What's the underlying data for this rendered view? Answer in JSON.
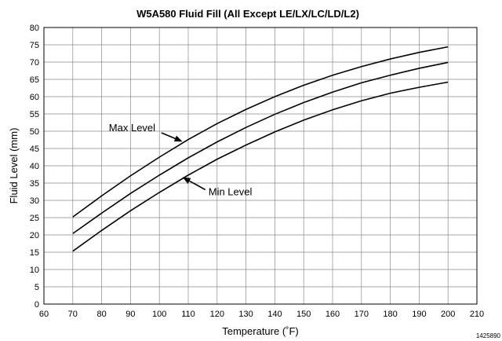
{
  "chart_data": {
    "type": "line",
    "title": "W5A580 Fluid Fill (All Except LE/LX/LC/LD/L2)",
    "xlabel": "Temperature (˚F)",
    "ylabel": "Fluid Level (mm)",
    "xlim": [
      60,
      210
    ],
    "ylim": [
      0,
      80
    ],
    "x_ticks": [
      60,
      70,
      80,
      90,
      100,
      110,
      120,
      130,
      140,
      150,
      160,
      170,
      180,
      190,
      200,
      210
    ],
    "y_ticks": [
      0,
      5,
      10,
      15,
      20,
      25,
      30,
      35,
      40,
      45,
      50,
      55,
      60,
      65,
      70,
      75,
      80
    ],
    "grid": true,
    "legend": "none",
    "series": [
      {
        "x": [
          70,
          80,
          90,
          100,
          110,
          120,
          130,
          140,
          150,
          160,
          170,
          180,
          190,
          200
        ],
        "values": [
          25.2,
          31.3,
          37.1,
          42.5,
          47.6,
          52.2,
          56.3,
          60.0,
          63.3,
          66.2,
          68.7,
          70.9,
          72.8,
          74.4
        ]
      },
      {
        "x": [
          70,
          80,
          90,
          100,
          110,
          120,
          130,
          140,
          150,
          160,
          170,
          180,
          190,
          200
        ],
        "values": [
          20.4,
          26.3,
          32.0,
          37.3,
          42.3,
          46.9,
          51.1,
          54.9,
          58.3,
          61.3,
          64.0,
          66.2,
          68.2,
          69.9
        ]
      },
      {
        "x": [
          70,
          80,
          90,
          100,
          110,
          120,
          130,
          140,
          150,
          160,
          170,
          180,
          190,
          200
        ],
        "values": [
          15.3,
          21.3,
          27.0,
          32.3,
          37.3,
          41.9,
          46.0,
          49.8,
          53.2,
          56.2,
          58.8,
          61.0,
          62.7,
          64.2
        ]
      }
    ],
    "annotations": [
      {
        "text": "Max Level",
        "points_to": {
          "x": 108,
          "y": 47
        },
        "label_at": {
          "x": 82.5,
          "y": 50
        },
        "anchor": "start"
      },
      {
        "text": "Min Level",
        "points_to": {
          "x": 108,
          "y": 36.7
        },
        "label_at": {
          "x": 117,
          "y": 31.5
        },
        "anchor": "start"
      }
    ],
    "figure_id": "1425890"
  }
}
